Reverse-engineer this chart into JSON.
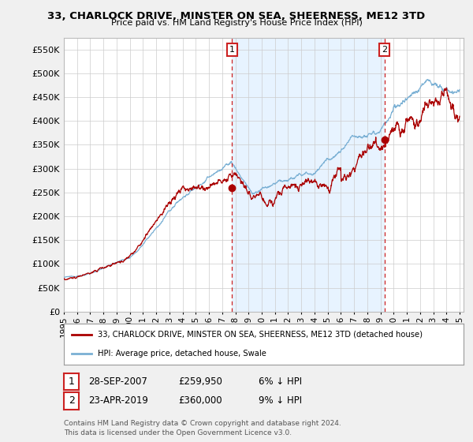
{
  "title": "33, CHARLOCK DRIVE, MINSTER ON SEA, SHEERNESS, ME12 3TD",
  "subtitle": "Price paid vs. HM Land Registry's House Price Index (HPI)",
  "legend_label_red": "33, CHARLOCK DRIVE, MINSTER ON SEA, SHEERNESS, ME12 3TD (detached house)",
  "legend_label_blue": "HPI: Average price, detached house, Swale",
  "annotation1_label": "1",
  "annotation1_date": "28-SEP-2007",
  "annotation1_price": "£259,950",
  "annotation1_pct": "6% ↓ HPI",
  "annotation2_label": "2",
  "annotation2_date": "23-APR-2019",
  "annotation2_price": "£360,000",
  "annotation2_pct": "9% ↓ HPI",
  "footer": "Contains HM Land Registry data © Crown copyright and database right 2024.\nThis data is licensed under the Open Government Licence v3.0.",
  "ylim": [
    0,
    575000
  ],
  "yticks": [
    0,
    50000,
    100000,
    150000,
    200000,
    250000,
    300000,
    350000,
    400000,
    450000,
    500000,
    550000
  ],
  "year_start": 1995,
  "year_end": 2025,
  "sale1_year": 2007.75,
  "sale1_price": 259950,
  "sale2_year": 2019.3,
  "sale2_price": 360000,
  "red_color": "#aa0000",
  "blue_color": "#7ab0d4",
  "shade_color": "#ddeeff",
  "background_color": "#f0f0f0",
  "plot_bg_color": "#ffffff",
  "annotation_box_color": "#cc2222",
  "vline_color": "#cc2222"
}
